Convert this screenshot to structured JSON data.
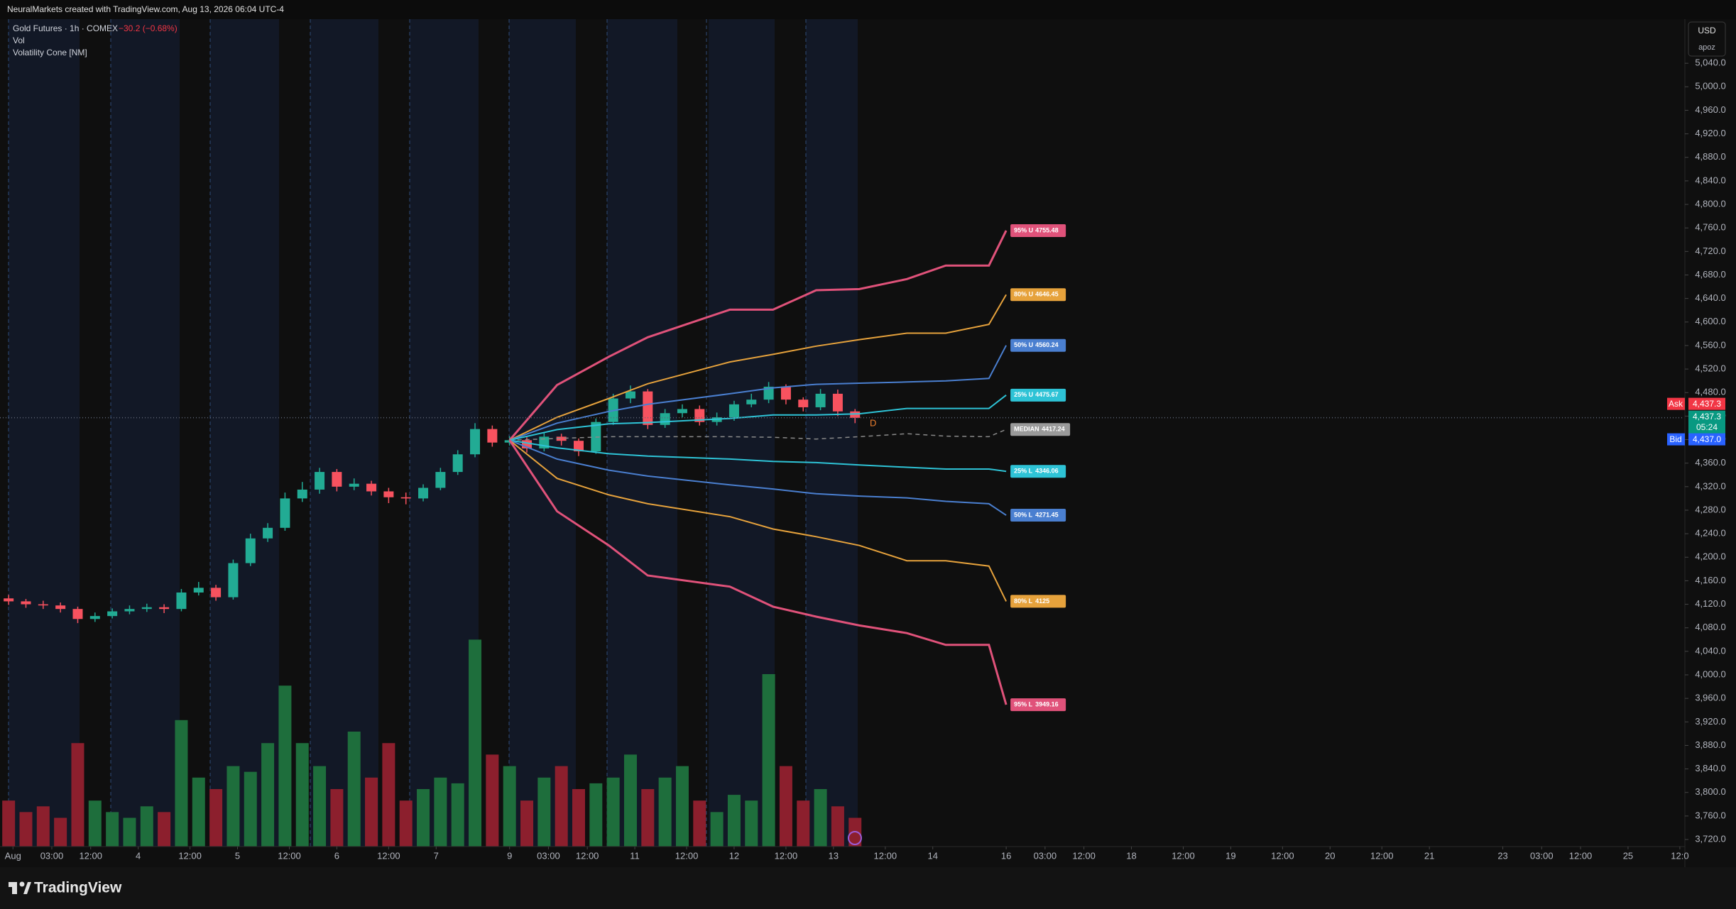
{
  "header": {
    "credit": "NeuralMarkets created with TradingView.com, Aug 13, 2026 06:04 UTC-4"
  },
  "legend": {
    "symbol": "Gold Futures · 1h · COMEX",
    "change": "−30.2 (−0.68%)",
    "volume": "Vol",
    "indicator": "Volatility Cone [NM]"
  },
  "currency": "USD",
  "scale_mode": "apoz",
  "price_tags": {
    "ask_label": "Ask",
    "ask": {
      "value": 4437.3,
      "label": "4,437.3"
    },
    "last": {
      "value": 4437.3,
      "label": "4,437.3"
    },
    "countdown": "05:24",
    "bid_label": "Bid",
    "bid": {
      "value": 4437.0,
      "label": "4,437.0"
    }
  },
  "marker": "D",
  "brand": "TradingView",
  "chart_data": {
    "type": "candlestick",
    "xlim": [
      0,
      390
    ],
    "ylim": [
      3708,
      5115
    ],
    "up_color": "#22ab94",
    "down_color": "#f7525f",
    "volume_up_color": "#1e6e3c",
    "volume_down_color": "#8c1f2d",
    "xticks": [
      {
        "value": 3,
        "label": "Aug"
      },
      {
        "value": 12,
        "label": "03:00"
      },
      {
        "value": 21,
        "label": "12:00"
      },
      {
        "value": 32,
        "label": "4"
      },
      {
        "value": 44,
        "label": "12:00"
      },
      {
        "value": 55,
        "label": "5"
      },
      {
        "value": 67,
        "label": "12:00"
      },
      {
        "value": 78,
        "label": "6"
      },
      {
        "value": 90,
        "label": "12:00"
      },
      {
        "value": 101,
        "label": "7"
      },
      {
        "value": 118,
        "label": "9"
      },
      {
        "value": 127,
        "label": "03:00"
      },
      {
        "value": 136,
        "label": "12:00"
      },
      {
        "value": 147,
        "label": "11"
      },
      {
        "value": 159,
        "label": "12:00"
      },
      {
        "value": 170,
        "label": "12"
      },
      {
        "value": 182,
        "label": "12:00"
      },
      {
        "value": 193,
        "label": "13"
      },
      {
        "value": 205,
        "label": "12:00"
      },
      {
        "value": 216,
        "label": "14"
      },
      {
        "value": 233,
        "label": "16"
      },
      {
        "value": 242,
        "label": "03:00"
      },
      {
        "value": 251,
        "label": "12:00"
      },
      {
        "value": 262,
        "label": "18"
      },
      {
        "value": 274,
        "label": "12:00"
      },
      {
        "value": 285,
        "label": "19"
      },
      {
        "value": 297,
        "label": "12:00"
      },
      {
        "value": 308,
        "label": "20"
      },
      {
        "value": 320,
        "label": "12:00"
      },
      {
        "value": 331,
        "label": "21"
      },
      {
        "value": 348,
        "label": "23"
      },
      {
        "value": 357,
        "label": "03:00"
      },
      {
        "value": 366,
        "label": "12:00"
      },
      {
        "value": 377,
        "label": "25"
      },
      {
        "value": 389,
        "label": "12:0"
      }
    ],
    "yticks": [
      {
        "value": 3720,
        "label": "3,720.0"
      },
      {
        "value": 3760,
        "label": "3,760.0"
      },
      {
        "value": 3800,
        "label": "3,800.0"
      },
      {
        "value": 3840,
        "label": "3,840.0"
      },
      {
        "value": 3880,
        "label": "3,880.0"
      },
      {
        "value": 3920,
        "label": "3,920.0"
      },
      {
        "value": 3960,
        "label": "3,960.0"
      },
      {
        "value": 4000,
        "label": "4,000.0"
      },
      {
        "value": 4040,
        "label": "4,040.0"
      },
      {
        "value": 4080,
        "label": "4,080.0"
      },
      {
        "value": 4120,
        "label": "4,120.0"
      },
      {
        "value": 4160,
        "label": "4,160.0"
      },
      {
        "value": 4200,
        "label": "4,200.0"
      },
      {
        "value": 4240,
        "label": "4,240.0"
      },
      {
        "value": 4280,
        "label": "4,280.0"
      },
      {
        "value": 4320,
        "label": "4,320.0"
      },
      {
        "value": 4360,
        "label": "4,360.0"
      },
      {
        "value": 4400,
        "label": "4,400.0"
      },
      {
        "value": 4440,
        "label": "4,440.0"
      },
      {
        "value": 4480,
        "label": "4,480.0"
      },
      {
        "value": 4520,
        "label": "4,520.0"
      },
      {
        "value": 4560,
        "label": "4,560.0"
      },
      {
        "value": 4600,
        "label": "4,600.0"
      },
      {
        "value": 4640,
        "label": "4,640.0"
      },
      {
        "value": 4680,
        "label": "4,680.0"
      },
      {
        "value": 4720,
        "label": "4,720.0"
      },
      {
        "value": 4760,
        "label": "4,760.0"
      },
      {
        "value": 4800,
        "label": "4,800.0"
      },
      {
        "value": 4840,
        "label": "4,840.0"
      },
      {
        "value": 4880,
        "label": "4,880.0"
      },
      {
        "value": 4920,
        "label": "4,920.0"
      },
      {
        "value": 4960,
        "label": "4,960.0"
      },
      {
        "value": 5000,
        "label": "5,000.0"
      },
      {
        "value": 5040,
        "label": "5,040.0"
      }
    ],
    "candles": {
      "x": [
        2,
        6,
        10,
        14,
        18,
        22,
        26,
        30,
        34,
        38,
        42,
        46,
        50,
        54,
        58,
        62,
        66,
        70,
        74,
        78,
        82,
        86,
        90,
        94,
        98,
        102,
        106,
        110,
        114,
        118,
        122,
        126,
        130,
        134,
        138,
        142,
        146,
        150,
        154,
        158,
        162,
        166,
        170,
        174,
        178,
        182,
        186,
        190,
        194,
        198
      ],
      "open": [
        4130,
        4125,
        4120,
        4118,
        4112,
        4095,
        4100,
        4108,
        4112,
        4115,
        4112,
        4140,
        4148,
        4132,
        4190,
        4232,
        4250,
        4300,
        4315,
        4345,
        4320,
        4325,
        4312,
        4302,
        4300,
        4318,
        4345,
        4375,
        4418,
        4395,
        4399,
        4385,
        4405,
        4398,
        4380,
        4430,
        4470,
        4482,
        4425,
        4445,
        4452,
        4430,
        4438,
        4460,
        4468,
        4490,
        4468,
        4455,
        4478,
        4448
      ],
      "high": [
        4136,
        4129,
        4126,
        4123,
        4116,
        4106,
        4113,
        4118,
        4121,
        4120,
        4146,
        4158,
        4153,
        4196,
        4240,
        4258,
        4310,
        4328,
        4352,
        4350,
        4334,
        4330,
        4318,
        4310,
        4324,
        4352,
        4382,
        4428,
        4424,
        4406,
        4404,
        4412,
        4410,
        4402,
        4436,
        4478,
        4492,
        4486,
        4452,
        4460,
        4458,
        4446,
        4466,
        4478,
        4498,
        4494,
        4472,
        4486,
        4485,
        4452
      ],
      "low": [
        4119,
        4114,
        4112,
        4106,
        4088,
        4090,
        4096,
        4103,
        4107,
        4105,
        4108,
        4135,
        4126,
        4128,
        4185,
        4226,
        4245,
        4294,
        4308,
        4312,
        4314,
        4305,
        4292,
        4290,
        4295,
        4314,
        4340,
        4370,
        4388,
        4390,
        4378,
        4380,
        4390,
        4372,
        4376,
        4425,
        4462,
        4418,
        4420,
        4438,
        4424,
        4424,
        4432,
        4455,
        4462,
        4460,
        4448,
        4450,
        4440,
        4428
      ],
      "close": [
        4125,
        4120,
        4118,
        4112,
        4095,
        4100,
        4108,
        4112,
        4115,
        4112,
        4140,
        4148,
        4132,
        4190,
        4232,
        4250,
        4300,
        4315,
        4345,
        4320,
        4325,
        4312,
        4302,
        4300,
        4318,
        4345,
        4375,
        4418,
        4395,
        4399,
        4385,
        4405,
        4398,
        4380,
        4430,
        4470,
        4482,
        4425,
        4445,
        4452,
        4430,
        4438,
        4460,
        4468,
        4490,
        4468,
        4455,
        4478,
        4448,
        4437
      ],
      "volume": [
        4000,
        3000,
        3500,
        2500,
        9000,
        4000,
        3000,
        2500,
        3500,
        3000,
        11000,
        6000,
        5000,
        7000,
        6500,
        9000,
        14000,
        9000,
        7000,
        5000,
        10000,
        6000,
        9000,
        4000,
        5000,
        6000,
        5500,
        18000,
        8000,
        7000,
        4000,
        6000,
        7000,
        5000,
        5500,
        6000,
        8000,
        5000,
        6000,
        7000,
        4000,
        3000,
        4500,
        4000,
        15000,
        7000,
        4000,
        5000,
        3500,
        2500
      ]
    },
    "volume_ylim": [
      0,
      25000
    ],
    "cone": {
      "x": [
        118,
        129,
        141,
        150,
        169,
        179,
        189,
        199,
        210,
        219,
        229,
        233
      ],
      "series": [
        {
          "name": "95% U",
          "color": "#e0527a",
          "values": [
            4399,
            4493,
            4541,
            4574,
            4621,
            4621,
            4654,
            4656,
            4673,
            4696,
            4696,
            4755.48
          ]
        },
        {
          "name": "80% U",
          "color": "#e6a23c",
          "values": [
            4399,
            4438,
            4470,
            4495,
            4532,
            4545,
            4559,
            4570,
            4581,
            4581,
            4596,
            4646.45
          ]
        },
        {
          "name": "50% U",
          "color": "#4a7fd0",
          "values": [
            4399,
            4428,
            4448,
            4460,
            4478,
            4488,
            4494,
            4496,
            4498,
            4500,
            4504,
            4560.24
          ]
        },
        {
          "name": "25% U",
          "color": "#2ec3d6",
          "values": [
            4399,
            4417,
            4427,
            4429,
            4436,
            4442,
            4442,
            4444,
            4453,
            4453,
            4453,
            4475.67
          ]
        },
        {
          "name": "MEDIAN",
          "color": "#8a8a8a",
          "dashed": true,
          "values": [
            4399,
            4402,
            4405,
            4405,
            4405,
            4404,
            4401,
            4405,
            4410,
            4406,
            4405,
            4417.24
          ]
        },
        {
          "name": "25% L",
          "color": "#2ec3d6",
          "values": [
            4399,
            4386,
            4376,
            4372,
            4367,
            4363,
            4361,
            4357,
            4353,
            4350,
            4350,
            4346.06
          ]
        },
        {
          "name": "50% L",
          "color": "#4a7fd0",
          "values": [
            4399,
            4367,
            4348,
            4338,
            4323,
            4316,
            4308,
            4304,
            4301,
            4295,
            4291,
            4271.45
          ]
        },
        {
          "name": "80% L",
          "color": "#e6a23c",
          "values": [
            4399,
            4334,
            4306,
            4291,
            4269,
            4248,
            4235,
            4220,
            4194,
            4194,
            4185,
            4125
          ]
        },
        {
          "name": "95% L",
          "color": "#e0527a",
          "values": [
            4399,
            4278,
            4220,
            4169,
            4150,
            4116,
            4099,
            4084,
            4071,
            4051,
            4051,
            3949.16
          ]
        }
      ]
    }
  }
}
